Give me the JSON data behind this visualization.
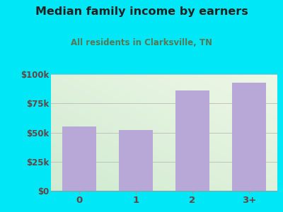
{
  "title": "Median family income by earners",
  "subtitle": "All residents in Clarksville, TN",
  "categories": [
    "0",
    "1",
    "2",
    "3+"
  ],
  "values": [
    55000,
    52000,
    86000,
    93000
  ],
  "bar_color": "#b8a8d8",
  "background_outer": "#00e8f8",
  "title_color": "#222222",
  "subtitle_color": "#557755",
  "tick_color": "#664444",
  "ylim": [
    0,
    100000
  ],
  "yticks": [
    0,
    25000,
    50000,
    75000,
    100000
  ],
  "ytick_labels": [
    "$0",
    "$25k",
    "$50k",
    "$75k",
    "$100k"
  ]
}
